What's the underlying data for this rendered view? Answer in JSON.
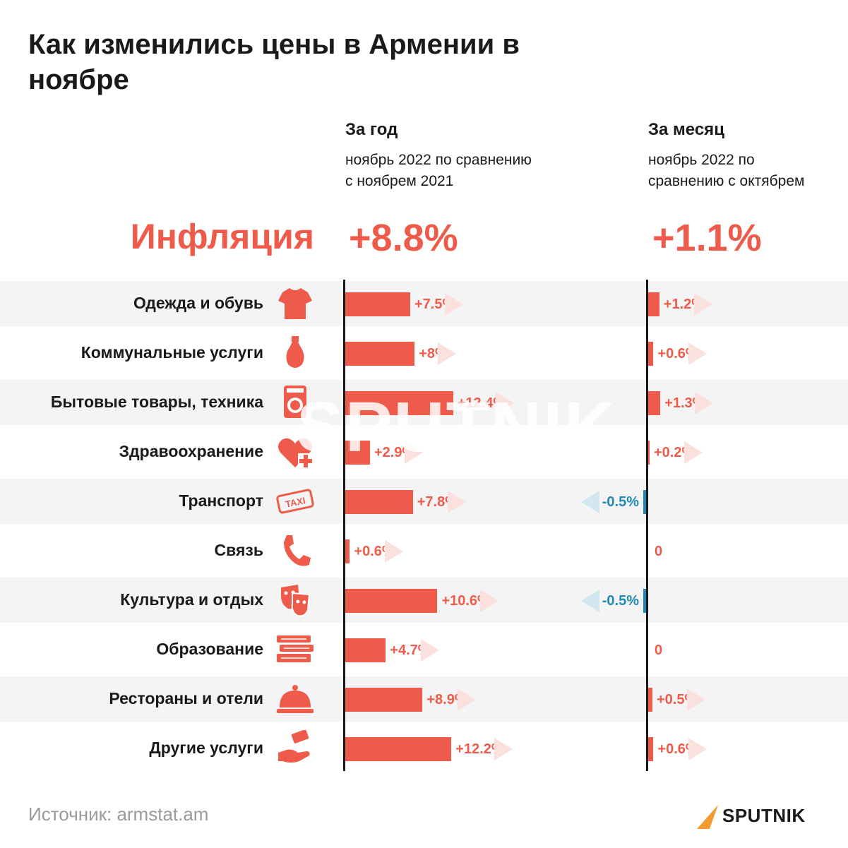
{
  "title": "Как изменились цены в Армении в ноябре",
  "columns": {
    "year": {
      "header": "За год",
      "subtitle_line1": "ноябрь 2022 по сравнению",
      "subtitle_line2": "с ноябрем 2021"
    },
    "month": {
      "header": "За месяц",
      "subtitle_line1": "ноябрь 2022 по",
      "subtitle_line2": "сравнению с октябрем"
    }
  },
  "inflation": {
    "label": "Инфляция",
    "year_label": "+8.8%",
    "month_label": "+1.1%"
  },
  "colors": {
    "positive": "#ee5b4b",
    "negative": "#1f8ab5",
    "text": "#1a1a1a",
    "shade": "#f4f4f4"
  },
  "chart_data": {
    "type": "bar",
    "orientation": "horizontal",
    "categories": [
      "Одежда и обувь",
      "Коммунальные услуги",
      "Бытовые товары, техника",
      "Здравоохранение",
      "Транспорт",
      "Связь",
      "Культура и отдых",
      "Образование",
      "Рестораны и отели",
      "Другие услуги"
    ],
    "icons": [
      "tshirt-icon",
      "lightbulb-icon",
      "washing-machine-icon",
      "heart-plus-icon",
      "taxi-icon",
      "phone-icon",
      "theater-masks-icon",
      "books-icon",
      "cloche-icon",
      "hand-money-icon"
    ],
    "series": [
      {
        "name": "За год",
        "values": [
          7.5,
          8,
          12.4,
          2.9,
          7.8,
          0.6,
          10.6,
          4.7,
          8.9,
          12.2
        ],
        "labels": [
          "+7.5%",
          "+8%",
          "+12.4%",
          "+2.9%",
          "+7.8%",
          "+0.6%",
          "+10.6%",
          "+4.7%",
          "+8.9%",
          "+12.2%"
        ]
      },
      {
        "name": "За месяц",
        "values": [
          1.2,
          0.6,
          1.3,
          0.2,
          -0.5,
          0,
          -0.5,
          0,
          0.5,
          0.6
        ],
        "labels": [
          "+1.2%",
          "+0.6%",
          "+1.3%",
          "+0.2%",
          "-0.5%",
          "0",
          "-0.5%",
          "0",
          "+0.5%",
          "+0.6%"
        ]
      }
    ]
  },
  "source": "Источник: armstat.am",
  "brand": {
    "logo_text": "SPUTNIK",
    "watermark": "SPUTNIK"
  }
}
